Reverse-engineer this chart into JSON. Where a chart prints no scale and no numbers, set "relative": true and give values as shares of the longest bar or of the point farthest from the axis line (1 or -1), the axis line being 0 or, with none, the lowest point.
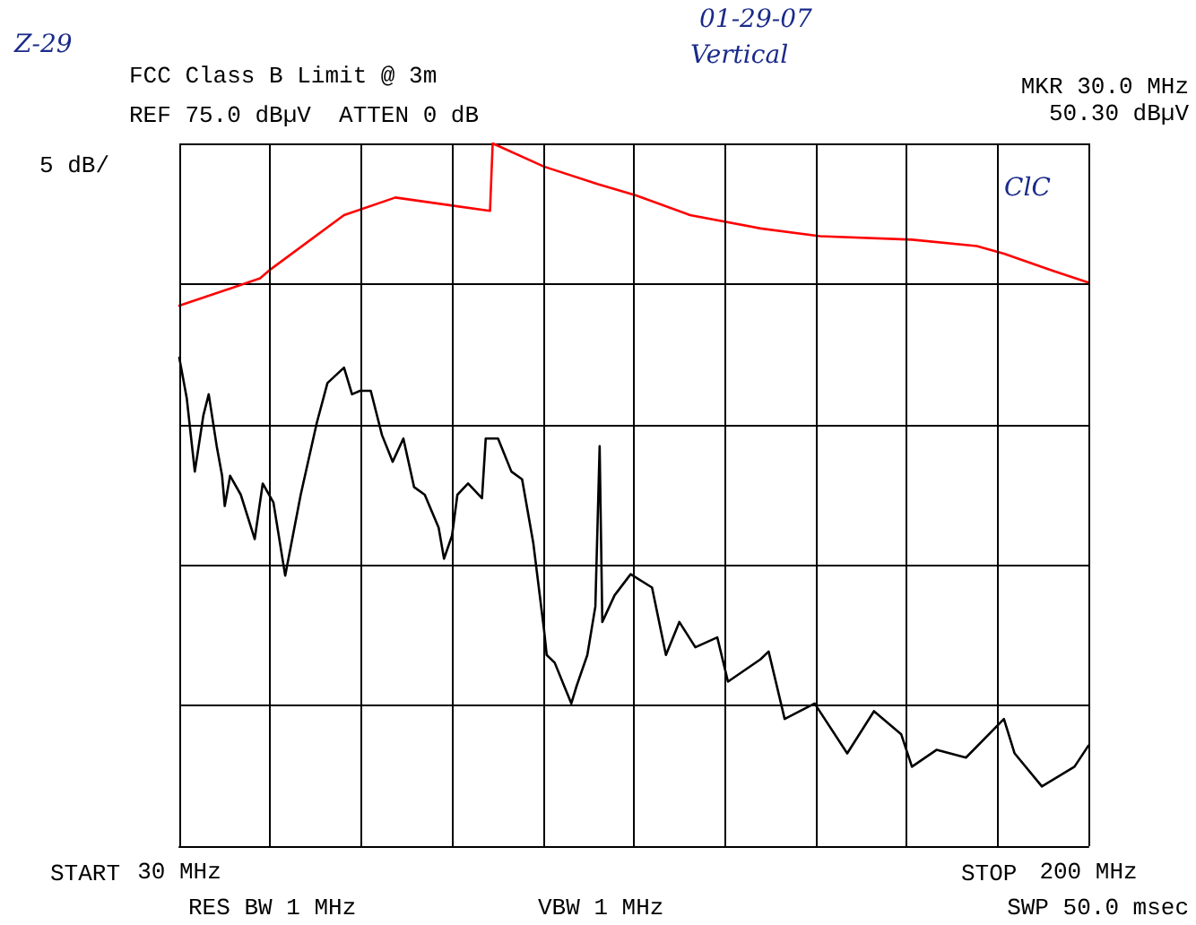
{
  "chart_data": {
    "type": "line",
    "title": "FCC Class B Limit @ 3m",
    "annotations": [
      "Z-29",
      "01-29-07",
      "Vertical",
      "REF 75.0 dBµV  ATTEN 0 dB",
      "5 dB/",
      "MKR 30.0 MHz",
      "50.30 dBµV",
      "ClC",
      "RES BW 1 MHz",
      "VBW 1 MHz",
      "SWP 50.0 msec",
      "START",
      "STOP"
    ],
    "xlim": [
      30,
      200
    ],
    "xticks": [
      {
        "value": 30,
        "label": "30 MHz"
      },
      {
        "value": 47,
        "label": null
      },
      {
        "value": 64,
        "label": null
      },
      {
        "value": 81,
        "label": null
      },
      {
        "value": 98,
        "label": null
      },
      {
        "value": 115,
        "label": null
      },
      {
        "value": 132,
        "label": null
      },
      {
        "value": 149,
        "label": null
      },
      {
        "value": 166,
        "label": null
      },
      {
        "value": 183,
        "label": null
      },
      {
        "value": 200,
        "label": "200 MHz"
      }
    ],
    "relative": true,
    "grid": true,
    "marker": "none",
    "line_style": "solid",
    "series": [
      {
        "color": "#ff0000",
        "x": [
          30,
          45.1,
          47.1,
          60.8,
          70.4,
          88.1,
          88.6,
          98.2,
          108.3,
          115.4,
          125.5,
          138.7,
          149.8,
          167.0,
          179.1,
          184.2,
          193.3,
          200
        ],
        "values": [
          0.769,
          0.808,
          0.821,
          0.898,
          0.923,
          0.904,
          1,
          0.967,
          0.942,
          0.926,
          0.898,
          0.879,
          0.868,
          0.863,
          0.854,
          0.843,
          0.819,
          0.802
        ]
      },
      {
        "color": "#000000",
        "x": [
          30,
          31.4,
          32.9,
          34.5,
          35.5,
          37.0,
          38.0,
          38.5,
          39.5,
          41.5,
          44.1,
          45.6,
          47.6,
          49.8,
          52.7,
          55.7,
          57.7,
          60.8,
          62.3,
          63.8,
          65.8,
          67.9,
          69.9,
          71.9,
          73.9,
          75.9,
          78.5,
          79.5,
          81.0,
          82.0,
          84.0,
          86.6,
          87.3,
          89.6,
          92.1,
          94.1,
          96.2,
          98.2,
          98.7,
          100.2,
          103.3,
          104.3,
          106.3,
          107.8,
          108.6,
          109.1,
          111.4,
          114.4,
          118.4,
          121.0,
          123.5,
          126.5,
          130.6,
          132.6,
          138.7,
          140.2,
          143.2,
          148.8,
          154.9,
          159.9,
          165.0,
          167.0,
          171.6,
          177.1,
          184.2,
          186.2,
          191.3,
          197.4,
          200
        ],
        "values": [
          0.695,
          0.637,
          0.533,
          0.613,
          0.643,
          0.569,
          0.527,
          0.484,
          0.527,
          0.5,
          0.437,
          0.516,
          0.489,
          0.385,
          0.5,
          0.602,
          0.659,
          0.681,
          0.643,
          0.648,
          0.648,
          0.585,
          0.547,
          0.58,
          0.511,
          0.5,
          0.453,
          0.409,
          0.442,
          0.5,
          0.516,
          0.495,
          0.58,
          0.58,
          0.533,
          0.522,
          0.431,
          0.308,
          0.272,
          0.261,
          0.203,
          0.228,
          0.272,
          0.341,
          0.569,
          0.319,
          0.357,
          0.387,
          0.368,
          0.272,
          0.319,
          0.283,
          0.297,
          0.234,
          0.266,
          0.277,
          0.181,
          0.203,
          0.132,
          0.192,
          0.159,
          0.113,
          0.137,
          0.126,
          0.181,
          0.132,
          0.085,
          0.113,
          0.143
        ]
      }
    ]
  }
}
